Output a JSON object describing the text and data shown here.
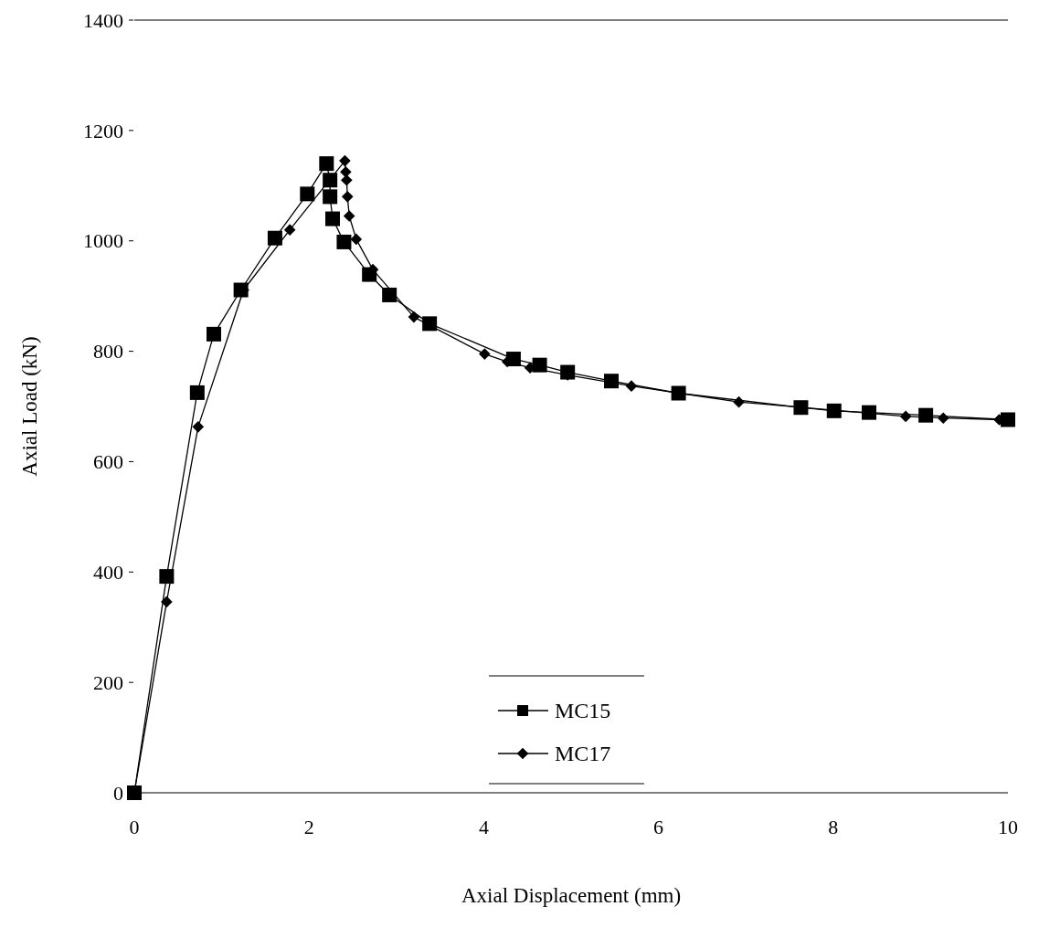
{
  "chart_data": {
    "type": "line",
    "xlabel": "Axial Displacement (mm)",
    "ylabel": "Axial Load (kN)",
    "xlim": [
      0,
      10
    ],
    "xticks": [
      0,
      2,
      4,
      6,
      8,
      10
    ],
    "ylim": [
      0,
      1400
    ],
    "yticks": [
      0,
      200,
      400,
      600,
      800,
      1000,
      1200,
      1400
    ],
    "legend": "bottom",
    "grid": false,
    "line_style": "solid",
    "series": [
      {
        "name": "MC15",
        "color": "#000000",
        "marker": "square",
        "x": [
          0,
          0.37,
          0.72,
          0.91,
          1.22,
          1.61,
          1.98,
          2.2,
          2.24,
          2.24,
          2.27,
          2.4,
          2.69,
          2.92,
          3.38,
          4.34,
          4.64,
          4.96,
          5.46,
          6.23,
          7.63,
          8.01,
          8.41,
          9.06,
          10
        ],
        "values": [
          0,
          392,
          725,
          831,
          911,
          1005,
          1085,
          1140,
          1110,
          1080,
          1040,
          998,
          939,
          902,
          850,
          786,
          775,
          762,
          746,
          724,
          698,
          692,
          689,
          684,
          676
        ]
      },
      {
        "name": "MC17",
        "color": "#000000",
        "marker": "diamond",
        "x": [
          0,
          0.37,
          0.73,
          1.25,
          1.78,
          2.41,
          2.42,
          2.43,
          2.44,
          2.46,
          2.54,
          2.73,
          3.2,
          4.01,
          4.27,
          4.53,
          4.96,
          5.69,
          6.92,
          8.83,
          9.26,
          9.9
        ],
        "values": [
          0,
          346,
          663,
          911,
          1020,
          1145,
          1125,
          1110,
          1080,
          1045,
          1003,
          948,
          862,
          795,
          781,
          770,
          757,
          737,
          708,
          682,
          679,
          676
        ]
      }
    ]
  }
}
